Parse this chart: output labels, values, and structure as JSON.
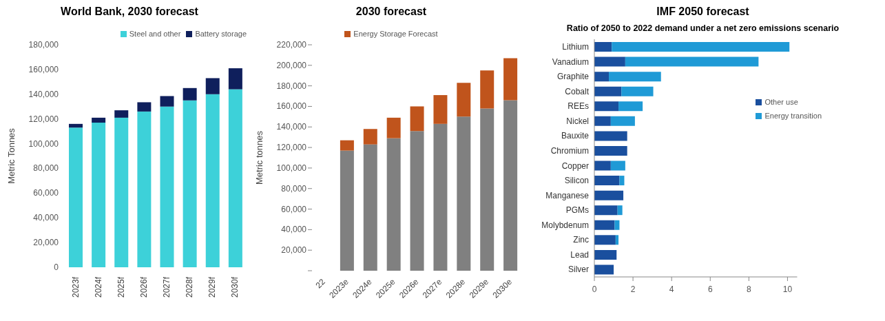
{
  "chart_data": [
    {
      "type": "bar",
      "title": "World Bank, 2030 forecast",
      "ylabel": "Metric Tonnes",
      "stacked": true,
      "legend": "top right",
      "grid": false,
      "categories": [
        "2023f",
        "2024f",
        "2025f",
        "2026f",
        "2027f",
        "2028f",
        "2029f",
        "2030f"
      ],
      "series": [
        {
          "name": "Steel and other",
          "color": "#3dd1d9",
          "values": [
            113000,
            117000,
            121000,
            126000,
            130000,
            135000,
            140000,
            144000
          ]
        },
        {
          "name": "Battery storage",
          "color": "#0f1f5c",
          "values": [
            3000,
            4000,
            6000,
            7500,
            8500,
            10000,
            13000,
            17000
          ]
        }
      ],
      "ylim": [
        0,
        180000
      ],
      "yticks": [
        {
          "value": 0,
          "label": "0"
        },
        {
          "value": 20000,
          "label": "20,000"
        },
        {
          "value": 40000,
          "label": "40,000"
        },
        {
          "value": 60000,
          "label": "60,000"
        },
        {
          "value": 80000,
          "label": "80,000"
        },
        {
          "value": 100000,
          "label": "100,000"
        },
        {
          "value": 120000,
          "label": "120,000"
        },
        {
          "value": 140000,
          "label": "140,000"
        },
        {
          "value": 160000,
          "label": "160,000"
        },
        {
          "value": 180000,
          "label": "180,000"
        }
      ]
    },
    {
      "type": "bar",
      "title": "2030 forecast",
      "ylabel": "Metric tonnes",
      "stacked": true,
      "legend": "top",
      "grid": false,
      "categories": [
        "22",
        "2023e",
        "2024e",
        "2025e",
        "2026e",
        "2027e",
        "2028e",
        "2029e",
        "2030e"
      ],
      "series": [
        {
          "color": "#808080",
          "values": [
            null,
            117000,
            123000,
            129000,
            136000,
            143000,
            150000,
            158000,
            166000
          ]
        },
        {
          "name": "Energy Storage Forecast",
          "color": "#c0541c",
          "values": [
            null,
            10000,
            15000,
            20000,
            24000,
            28000,
            33000,
            37000,
            41000
          ]
        }
      ],
      "ylim": [
        0,
        220000
      ],
      "yticks": [
        {
          "value": 0,
          "label": null
        },
        {
          "value": 20000,
          "label": "20,000"
        },
        {
          "value": 40000,
          "label": "40,000"
        },
        {
          "value": 60000,
          "label": "60,000"
        },
        {
          "value": 80000,
          "label": "80,000"
        },
        {
          "value": 100000,
          "label": "100,000"
        },
        {
          "value": 120000,
          "label": "120,000"
        },
        {
          "value": 140000,
          "label": "140,000"
        },
        {
          "value": 160000,
          "label": "160,000"
        },
        {
          "value": 180000,
          "label": "180,000"
        },
        {
          "value": 200000,
          "label": "200,000"
        },
        {
          "value": 220000,
          "label": "220,000"
        }
      ]
    },
    {
      "type": "bar",
      "title": "IMF 2050 forecast",
      "subtitle": "Ratio of 2050 to 2022 demand under a net zero emissions scenario",
      "stacked": true,
      "orientation": "horizontal",
      "legend": "right",
      "grid": false,
      "categories": [
        "Lithium",
        "Vanadium",
        "Graphite",
        "Cobalt",
        "REEs",
        "Nickel",
        "Bauxite",
        "Chromium",
        "Copper",
        "Silicon",
        "Manganese",
        "PGMs",
        "Molybdenum",
        "Zinc",
        "Lead",
        "Silver"
      ],
      "series": [
        {
          "name": "Other use",
          "color": "#1a4f9e",
          "values": [
            0.9,
            1.6,
            0.75,
            1.4,
            1.25,
            0.85,
            1.7,
            1.7,
            0.85,
            1.3,
            1.5,
            1.2,
            1.05,
            1.1,
            1.15,
            1.0
          ]
        },
        {
          "name": "Energy transition",
          "color": "#1f9ad6",
          "values": [
            9.2,
            6.9,
            2.7,
            1.65,
            1.25,
            1.25,
            0,
            0,
            0.75,
            0.25,
            0,
            0.25,
            0.25,
            0.15,
            0,
            0
          ]
        }
      ],
      "xlim": [
        0,
        10.5
      ],
      "xticks": [
        0,
        2,
        4,
        6,
        8,
        10
      ]
    }
  ]
}
